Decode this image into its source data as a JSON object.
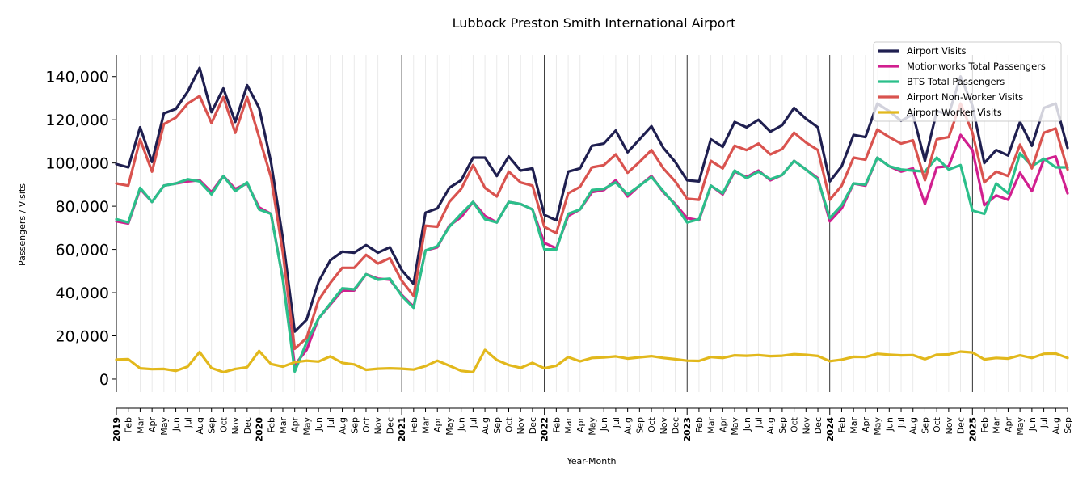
{
  "chart_data": {
    "type": "line",
    "title": "Lubbock Preston Smith International Airport",
    "xlabel": "Year-Month",
    "ylabel": "Passengers / Visits",
    "ylim": [
      -6000,
      150000
    ],
    "yticks": [
      0,
      20000,
      40000,
      60000,
      80000,
      100000,
      120000,
      140000
    ],
    "ytick_labels": [
      "0",
      "20,000",
      "40,000",
      "60,000",
      "80,000",
      "100,000",
      "120,000",
      "140,000"
    ],
    "grid": "vertical monthly lines, year separators",
    "legend_position": "top-right",
    "x": [
      "2019-01",
      "2019-02",
      "2019-03",
      "2019-04",
      "2019-05",
      "2019-06",
      "2019-07",
      "2019-08",
      "2019-09",
      "2019-10",
      "2019-11",
      "2019-12",
      "2020-01",
      "2020-02",
      "2020-03",
      "2020-04",
      "2020-05",
      "2020-06",
      "2020-07",
      "2020-08",
      "2020-09",
      "2020-10",
      "2020-11",
      "2020-12",
      "2021-01",
      "2021-02",
      "2021-03",
      "2021-04",
      "2021-05",
      "2021-06",
      "2021-07",
      "2021-08",
      "2021-09",
      "2021-10",
      "2021-11",
      "2021-12",
      "2022-01",
      "2022-02",
      "2022-03",
      "2022-04",
      "2022-05",
      "2022-06",
      "2022-07",
      "2022-08",
      "2022-09",
      "2022-10",
      "2022-11",
      "2022-12",
      "2023-01",
      "2023-02",
      "2023-03",
      "2023-04",
      "2023-05",
      "2023-06",
      "2023-07",
      "2023-08",
      "2023-09",
      "2023-10",
      "2023-11",
      "2023-12",
      "2024-01",
      "2024-02",
      "2024-03",
      "2024-04",
      "2024-05",
      "2024-06",
      "2024-07",
      "2024-08",
      "2024-09",
      "2024-10",
      "2024-11",
      "2024-12",
      "2025-01",
      "2025-02",
      "2025-03",
      "2025-04",
      "2025-05",
      "2025-06",
      "2025-07",
      "2025-08",
      "2025-09"
    ],
    "x_tick_labels": [
      "2019",
      "Feb",
      "Mar",
      "Apr",
      "May",
      "Jun",
      "Jul",
      "Aug",
      "Sep",
      "Oct",
      "Nov",
      "Dec",
      "2020",
      "Feb",
      "Mar",
      "Apr",
      "May",
      "Jun",
      "Jul",
      "Aug",
      "Sep",
      "Oct",
      "Nov",
      "Dec",
      "2021",
      "Feb",
      "Mar",
      "Apr",
      "May",
      "Jun",
      "Jul",
      "Aug",
      "Sep",
      "Oct",
      "Nov",
      "Dec",
      "2022",
      "Feb",
      "Mar",
      "Apr",
      "May",
      "Jun",
      "Jul",
      "Aug",
      "Sep",
      "Oct",
      "Nov",
      "Dec",
      "2023",
      "Feb",
      "Mar",
      "Apr",
      "May",
      "Jun",
      "Jul",
      "Aug",
      "Sep",
      "Oct",
      "Nov",
      "Dec",
      "2024",
      "Feb",
      "Mar",
      "Apr",
      "May",
      "Jun",
      "Jul",
      "Aug",
      "Sep",
      "Oct",
      "Nov",
      "Dec",
      "2025",
      "Feb",
      "Mar",
      "Apr",
      "May",
      "Jun",
      "Jul",
      "Aug",
      "Sep"
    ],
    "series": [
      {
        "name": "Airport Visits",
        "color": "#1f1f50",
        "values": [
          99500,
          98000,
          116500,
          100500,
          123000,
          125000,
          133000,
          144000,
          123500,
          134500,
          119000,
          136000,
          125500,
          100500,
          65000,
          22000,
          27500,
          45000,
          55000,
          59000,
          58500,
          62000,
          58500,
          61000,
          50500,
          44000,
          77000,
          79000,
          88500,
          92000,
          102500,
          102500,
          94000,
          103000,
          96500,
          97500,
          76000,
          73500,
          96000,
          97500,
          108000,
          109000,
          115000,
          105000,
          111000,
          117000,
          107000,
          100500,
          92000,
          91500,
          111000,
          107500,
          119000,
          116500,
          120000,
          114500,
          117500,
          125500,
          120500,
          116500,
          91500,
          98500,
          113000,
          112000,
          127500,
          124000,
          119500,
          122500,
          101000,
          124000,
          122500,
          140000,
          126500,
          100000,
          106000,
          103500,
          119000,
          108000,
          125500,
          127500,
          107000
        ]
      },
      {
        "name": "Motionworks Total Passengers",
        "color": "#d11f8f",
        "values": [
          73000,
          72000,
          88000,
          82000,
          89500,
          90500,
          91500,
          92000,
          86500,
          94000,
          88000,
          90500,
          79500,
          76500,
          46500,
          6500,
          13500,
          28000,
          34500,
          41000,
          41000,
          48500,
          46500,
          46000,
          39000,
          33500,
          59500,
          61000,
          71000,
          75000,
          82000,
          75500,
          72500,
          82000,
          81000,
          78500,
          63000,
          60500,
          75500,
          78500,
          86500,
          87500,
          92000,
          84500,
          89500,
          94000,
          86500,
          81000,
          74500,
          73500,
          89500,
          85500,
          96000,
          93500,
          96500,
          92000,
          94500,
          101000,
          97000,
          93000,
          73000,
          79000,
          90500,
          89500,
          102500,
          98500,
          96000,
          97500,
          81000,
          98000,
          98500,
          113000,
          106000,
          80500,
          85000,
          83000,
          95500,
          87000,
          101500,
          103000,
          86000
        ]
      },
      {
        "name": "BTS Total Passengers",
        "color": "#2bbf8a",
        "values": [
          74000,
          72500,
          88500,
          82000,
          89500,
          90500,
          92500,
          91500,
          85500,
          94000,
          87000,
          91000,
          78500,
          76500,
          46000,
          3500,
          17000,
          28000,
          35000,
          42000,
          41500,
          48500,
          46000,
          46500,
          38500,
          33000,
          59500,
          61500,
          70500,
          76500,
          82000,
          74000,
          72500,
          82000,
          81000,
          78500,
          60000,
          60000,
          76500,
          78500,
          87500,
          88000,
          91000,
          85500,
          89500,
          93500,
          87000,
          80500,
          72500,
          74000,
          89500,
          86000,
          96500,
          93000,
          96000,
          92500,
          94500,
          101000,
          97000,
          92500,
          74500,
          80500,
          90500,
          90000,
          102500,
          98500,
          97000,
          96500,
          96000,
          102500,
          97000,
          99000,
          78000,
          76500,
          90500,
          86000,
          104500,
          98500,
          102000,
          98000,
          98000
        ]
      },
      {
        "name": "Airport Non-Worker Visits",
        "color": "#d9534f",
        "values": [
          90500,
          89500,
          111000,
          96000,
          118000,
          121000,
          127500,
          131000,
          118500,
          130500,
          114000,
          130500,
          112000,
          93500,
          58500,
          14000,
          19000,
          36500,
          44500,
          51500,
          51500,
          57500,
          53500,
          56000,
          45500,
          38500,
          71000,
          70500,
          82000,
          88000,
          99000,
          88500,
          84500,
          96000,
          91000,
          89500,
          70500,
          67500,
          86000,
          89000,
          98000,
          99000,
          104000,
          95500,
          100500,
          106000,
          97500,
          91500,
          83500,
          83000,
          101000,
          97500,
          108000,
          106000,
          109000,
          104000,
          106500,
          114000,
          109500,
          106000,
          83000,
          89500,
          102500,
          101500,
          115500,
          112000,
          109000,
          110500,
          92000,
          111000,
          112000,
          127500,
          114000,
          91000,
          96000,
          94000,
          108500,
          97500,
          114000,
          116000,
          97000
        ]
      },
      {
        "name": "Airport Worker Visits",
        "color": "#e2b81c",
        "values": [
          9000,
          9200,
          5000,
          4600,
          4700,
          3800,
          5800,
          12500,
          5100,
          3200,
          4700,
          5500,
          13000,
          7000,
          5800,
          7800,
          8500,
          8100,
          10500,
          7500,
          6800,
          4300,
          4800,
          5000,
          4800,
          4400,
          6000,
          8500,
          6200,
          3800,
          3200,
          13500,
          8800,
          6500,
          5200,
          7500,
          5000,
          6200,
          10200,
          8200,
          9800,
          10000,
          10500,
          9500,
          10100,
          10600,
          9800,
          9200,
          8500,
          8400,
          10200,
          9800,
          11000,
          10800,
          11100,
          10600,
          10800,
          11500,
          11200,
          10700,
          8300,
          9000,
          10300,
          10200,
          11700,
          11300,
          11000,
          11100,
          9200,
          11300,
          11400,
          12700,
          12300,
          9100,
          9800,
          9500,
          11000,
          9800,
          11700,
          11800,
          9800
        ]
      }
    ]
  }
}
